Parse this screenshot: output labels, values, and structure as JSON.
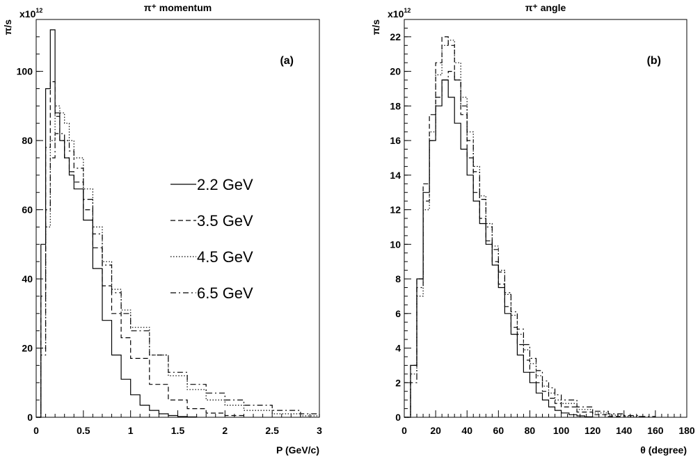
{
  "chart_data": [
    {
      "type": "line",
      "title": "π⁺ momentum",
      "panel_label": "(a)",
      "xlabel": "P (GeV/c)",
      "ylabel": "π/s",
      "y_multiplier": "x10",
      "y_multiplier_exp": "12",
      "xlim": [
        0,
        3
      ],
      "ylim": [
        0,
        115
      ],
      "xticks": [
        0,
        0.5,
        1,
        1.5,
        2,
        2.5,
        3
      ],
      "xtick_labels": [
        "0",
        "0.5",
        "1",
        "1.5",
        "2",
        "2.5",
        "3"
      ],
      "yticks": [
        0,
        20,
        40,
        60,
        80,
        100
      ],
      "ytick_labels": [
        "0",
        "20",
        "40",
        "60",
        "80",
        "100"
      ],
      "legend_position": "center-right",
      "series": [
        {
          "name": "2.2 GeV",
          "style": "solid",
          "x": [
            0,
            0.05,
            0.1,
            0.15,
            0.2,
            0.25,
            0.3,
            0.35,
            0.4,
            0.5,
            0.6,
            0.7,
            0.8,
            0.9,
            1.0,
            1.1,
            1.2,
            1.3,
            1.4,
            1.5,
            1.6,
            1.7
          ],
          "values": [
            0,
            50,
            95,
            112,
            88,
            80,
            75,
            70,
            66,
            57,
            43,
            28,
            18,
            11,
            6.5,
            3.5,
            2,
            1,
            0.5,
            0.2,
            0.1,
            0
          ]
        },
        {
          "name": "3.5 GeV",
          "style": "dashed",
          "x": [
            0,
            0.05,
            0.1,
            0.15,
            0.2,
            0.25,
            0.3,
            0.35,
            0.4,
            0.5,
            0.6,
            0.7,
            0.8,
            0.9,
            1.0,
            1.2,
            1.4,
            1.6,
            1.8,
            2.0,
            2.2
          ],
          "values": [
            0,
            35,
            78,
            97,
            87,
            80,
            75,
            71,
            68,
            60,
            49,
            38,
            30,
            23,
            17,
            9.5,
            5,
            2.5,
            1.2,
            0.5,
            0
          ]
        },
        {
          "name": "4.5 GeV",
          "style": "dotted",
          "x": [
            0,
            0.05,
            0.1,
            0.15,
            0.2,
            0.25,
            0.3,
            0.35,
            0.4,
            0.5,
            0.6,
            0.7,
            0.8,
            0.9,
            1.0,
            1.2,
            1.4,
            1.6,
            1.8,
            2.0,
            2.2,
            2.5,
            2.8,
            3.0
          ],
          "values": [
            0,
            20,
            55,
            80,
            90,
            88,
            85,
            80,
            75,
            66,
            55,
            45,
            37,
            31,
            26,
            18,
            12,
            8,
            5,
            3.5,
            2,
            1,
            0.4,
            0.2
          ]
        },
        {
          "name": "6.5 GeV",
          "style": "dashdot",
          "x": [
            0,
            0.05,
            0.1,
            0.15,
            0.2,
            0.25,
            0.3,
            0.35,
            0.4,
            0.5,
            0.6,
            0.7,
            0.8,
            0.9,
            1.0,
            1.2,
            1.4,
            1.6,
            1.8,
            2.0,
            2.2,
            2.5,
            2.8,
            3.0
          ],
          "values": [
            0,
            18,
            60,
            75,
            82,
            82,
            80,
            77,
            72,
            63,
            53,
            44,
            36,
            30,
            25,
            18,
            13,
            9.5,
            7,
            5,
            3.5,
            2,
            1,
            0.5
          ]
        }
      ]
    },
    {
      "type": "line",
      "title": "π⁺ angle",
      "panel_label": "(b)",
      "xlabel": "θ (degree)",
      "ylabel": "π/s",
      "y_multiplier": "x10",
      "y_multiplier_exp": "12",
      "xlim": [
        0,
        180
      ],
      "ylim": [
        0,
        23
      ],
      "xticks": [
        0,
        20,
        40,
        60,
        80,
        100,
        120,
        140,
        160,
        180
      ],
      "xtick_labels": [
        "0",
        "20",
        "40",
        "60",
        "80",
        "100",
        "120",
        "140",
        "160",
        "180"
      ],
      "yticks": [
        0,
        2,
        4,
        6,
        8,
        10,
        12,
        14,
        16,
        18,
        20,
        22
      ],
      "ytick_labels": [
        "0",
        "2",
        "4",
        "6",
        "8",
        "10",
        "12",
        "14",
        "16",
        "18",
        "20",
        "22"
      ],
      "series": [
        {
          "name": "2.2 GeV",
          "style": "solid",
          "x": [
            0,
            4,
            8,
            12,
            16,
            20,
            24,
            28,
            32,
            36,
            40,
            44,
            48,
            52,
            56,
            60,
            64,
            68,
            72,
            76,
            80,
            84,
            88,
            92,
            96,
            100,
            105,
            110,
            115,
            120
          ],
          "values": [
            0,
            3,
            8,
            13,
            16,
            18,
            19.5,
            18.5,
            17,
            15.5,
            14,
            12.5,
            11.2,
            10,
            8.8,
            7.5,
            6,
            4.8,
            3.6,
            2.6,
            2.0,
            1.4,
            1.0,
            0.6,
            0.4,
            0.25,
            0.15,
            0.08,
            0.03,
            0
          ]
        },
        {
          "name": "3.5 GeV",
          "style": "dashed",
          "x": [
            0,
            4,
            8,
            12,
            16,
            20,
            24,
            28,
            32,
            36,
            40,
            44,
            48,
            52,
            56,
            60,
            64,
            68,
            72,
            76,
            80,
            84,
            88,
            92,
            96,
            100,
            110,
            120,
            130,
            140
          ],
          "values": [
            0,
            3,
            8,
            13.5,
            17.5,
            20.5,
            22,
            21.5,
            19.5,
            17.5,
            15,
            13,
            11.5,
            10.2,
            9,
            7.7,
            6.4,
            5.2,
            4.2,
            3.3,
            2.6,
            2.0,
            1.5,
            1.1,
            0.8,
            0.6,
            0.3,
            0.15,
            0.05,
            0
          ]
        },
        {
          "name": "4.5 GeV",
          "style": "dotted",
          "x": [
            0,
            4,
            8,
            12,
            16,
            20,
            24,
            28,
            32,
            36,
            40,
            44,
            48,
            52,
            56,
            60,
            64,
            68,
            72,
            76,
            80,
            84,
            88,
            92,
            96,
            100,
            110,
            120,
            130,
            140,
            150
          ],
          "values": [
            0,
            2.5,
            7,
            12,
            16.5,
            19.8,
            21.5,
            21.8,
            20.5,
            18.5,
            16.5,
            14.5,
            12.8,
            11.2,
            9.9,
            8.5,
            7.1,
            5.9,
            4.8,
            3.9,
            3.1,
            2.4,
            1.8,
            1.4,
            1.0,
            0.8,
            0.45,
            0.25,
            0.12,
            0.05,
            0
          ]
        },
        {
          "name": "6.5 GeV",
          "style": "dashdot",
          "x": [
            0,
            4,
            8,
            12,
            16,
            20,
            24,
            28,
            32,
            36,
            40,
            44,
            48,
            52,
            56,
            60,
            64,
            68,
            72,
            76,
            80,
            84,
            88,
            92,
            96,
            100,
            110,
            120,
            130,
            140,
            150,
            160
          ],
          "values": [
            0,
            2,
            7.5,
            12.5,
            16,
            18.5,
            19.5,
            20,
            19.5,
            18,
            16,
            14.2,
            12.6,
            11,
            9.7,
            8.4,
            7.2,
            6.1,
            5.1,
            4.2,
            3.4,
            2.7,
            2.1,
            1.7,
            1.3,
            1.0,
            0.6,
            0.35,
            0.2,
            0.1,
            0.05,
            0
          ]
        }
      ]
    }
  ]
}
